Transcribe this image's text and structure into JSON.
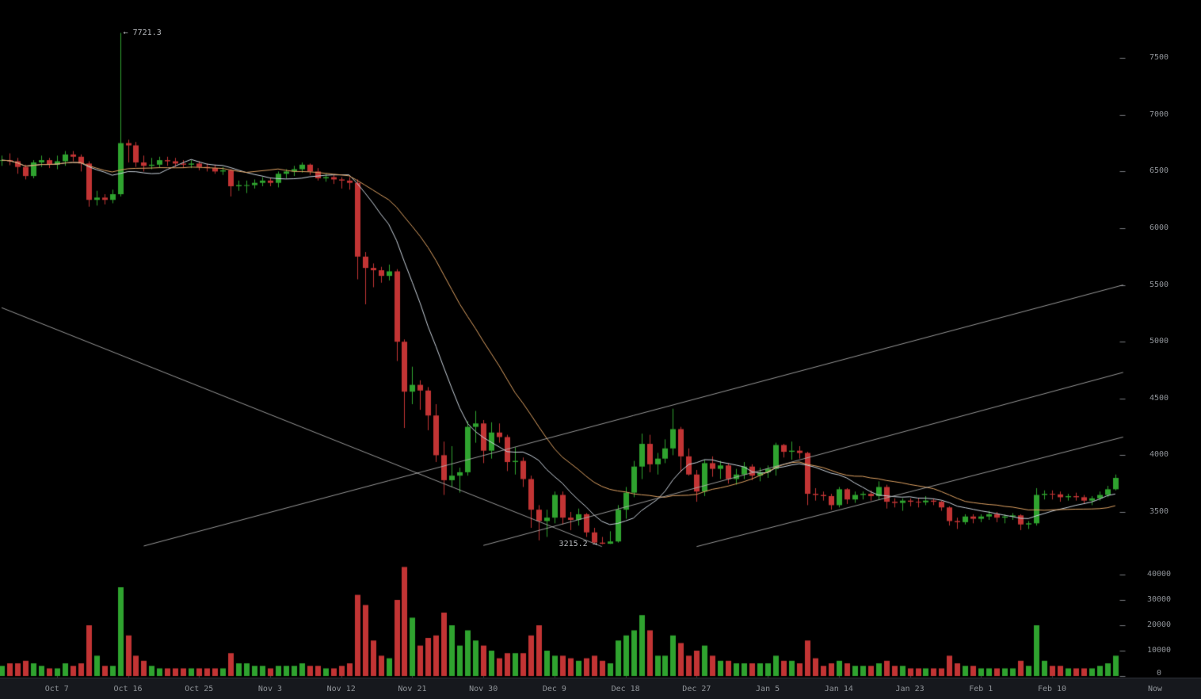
{
  "colors": {
    "background": "#000000",
    "candle_up": "#2fa32f",
    "candle_down": "#c23434",
    "ma_fast": "#c9d2dc",
    "ma_slow": "#dfa263",
    "trend_line": "#b3b3b3",
    "axis_text": "#8f9398",
    "axis_tick": "#7a7d82",
    "time_tick": "#3a3d42",
    "annotation": "#b6b9bd",
    "bottom_bar_bg": "#16181d",
    "bottom_bar_border": "#2f323a"
  },
  "chart_data": {
    "type": "candlestick",
    "has_volume_pane": true,
    "grid": false,
    "price_axis": {
      "side": "right",
      "ticks": [
        7500,
        7000,
        6500,
        6000,
        5500,
        5000,
        4500,
        4000,
        3500
      ],
      "visible_range": [
        3150,
        7800
      ]
    },
    "volume_axis": {
      "ticks": [
        40000,
        30000,
        20000,
        10000,
        0
      ],
      "visible_range": [
        0,
        43000
      ]
    },
    "time_axis": {
      "now_label": "Now",
      "ticks": [
        {
          "i": 7,
          "label": "Oct 7"
        },
        {
          "i": 16,
          "label": "Oct 16"
        },
        {
          "i": 25,
          "label": "Oct 25"
        },
        {
          "i": 34,
          "label": "Nov 3"
        },
        {
          "i": 43,
          "label": "Nov 12"
        },
        {
          "i": 52,
          "label": "Nov 21"
        },
        {
          "i": 61,
          "label": "Nov 30"
        },
        {
          "i": 70,
          "label": "Dec 9"
        },
        {
          "i": 79,
          "label": "Dec 18"
        },
        {
          "i": 88,
          "label": "Dec 27"
        },
        {
          "i": 97,
          "label": "Jan 5"
        },
        {
          "i": 106,
          "label": "Jan 14"
        },
        {
          "i": 115,
          "label": "Jan 23"
        },
        {
          "i": 124,
          "label": "Feb 1"
        },
        {
          "i": 133,
          "label": "Feb 10"
        }
      ]
    },
    "annotations": {
      "high": {
        "text": "← 7721.3",
        "value": 7721.3,
        "candle_index": 15
      },
      "low": {
        "text": "3215.2 →",
        "value": 3215.2,
        "candle_index": 76
      }
    },
    "moving_averages": [
      {
        "name": "ma-fast",
        "period": 10
      },
      {
        "name": "ma-slow",
        "period": 21
      }
    ],
    "trend_lines": [
      {
        "from": {
          "i": 0,
          "price": 5300
        },
        "to": {
          "i": 76,
          "price": 3195
        }
      },
      {
        "from": {
          "i": 18,
          "price": 3200
        },
        "to": {
          "i": 142,
          "price": 5500
        }
      },
      {
        "from": {
          "i": 61,
          "price": 3205
        },
        "to": {
          "i": 142,
          "price": 4730
        }
      },
      {
        "from": {
          "i": 88,
          "price": 3195
        },
        "to": {
          "i": 142,
          "price": 4160
        }
      }
    ],
    "candles_format": [
      "date",
      "open",
      "high",
      "low",
      "close",
      "volume"
    ],
    "candles": [
      [
        "Sep 30",
        6595,
        6640,
        6550,
        6600,
        4000
      ],
      [
        "Oct 1",
        6600,
        6660,
        6555,
        6590,
        5000
      ],
      [
        "Oct 2",
        6590,
        6620,
        6480,
        6540,
        5000
      ],
      [
        "Oct 3",
        6540,
        6560,
        6430,
        6460,
        6000
      ],
      [
        "Oct 4",
        6460,
        6600,
        6440,
        6580,
        5000
      ],
      [
        "Oct 5",
        6580,
        6640,
        6540,
        6600,
        4000
      ],
      [
        "Oct 6",
        6600,
        6620,
        6530,
        6560,
        3000
      ],
      [
        "Oct 7",
        6560,
        6640,
        6520,
        6590,
        3000
      ],
      [
        "Oct 8",
        6590,
        6680,
        6550,
        6650,
        5000
      ],
      [
        "Oct 9",
        6650,
        6680,
        6590,
        6630,
        4000
      ],
      [
        "Oct 10",
        6630,
        6650,
        6500,
        6570,
        5000
      ],
      [
        "Oct 11",
        6570,
        6590,
        6190,
        6250,
        20000
      ],
      [
        "Oct 12",
        6250,
        6330,
        6200,
        6270,
        8000
      ],
      [
        "Oct 13",
        6270,
        6300,
        6210,
        6250,
        4000
      ],
      [
        "Oct 14",
        6250,
        6340,
        6220,
        6300,
        4000
      ],
      [
        "Oct 15",
        6300,
        7721.3,
        6280,
        6750,
        35000
      ],
      [
        "Oct 16",
        6750,
        6780,
        6580,
        6730,
        16000
      ],
      [
        "Oct 17",
        6730,
        6760,
        6540,
        6580,
        8000
      ],
      [
        "Oct 18",
        6580,
        6640,
        6500,
        6550,
        6000
      ],
      [
        "Oct 19",
        6550,
        6620,
        6520,
        6560,
        4000
      ],
      [
        "Oct 20",
        6560,
        6630,
        6530,
        6600,
        3000
      ],
      [
        "Oct 21",
        6600,
        6630,
        6550,
        6590,
        3000
      ],
      [
        "Oct 22",
        6590,
        6620,
        6540,
        6570,
        3000
      ],
      [
        "Oct 23",
        6570,
        6600,
        6530,
        6560,
        3000
      ],
      [
        "Oct 24",
        6560,
        6600,
        6530,
        6570,
        3000
      ],
      [
        "Oct 25",
        6570,
        6590,
        6510,
        6540,
        3000
      ],
      [
        "Oct 26",
        6540,
        6570,
        6500,
        6530,
        3000
      ],
      [
        "Oct 27",
        6530,
        6560,
        6480,
        6500,
        3000
      ],
      [
        "Oct 28",
        6500,
        6540,
        6470,
        6510,
        3000
      ],
      [
        "Oct 29",
        6510,
        6520,
        6280,
        6370,
        9000
      ],
      [
        "Oct 30",
        6370,
        6420,
        6330,
        6380,
        5000
      ],
      [
        "Oct 31",
        6380,
        6420,
        6310,
        6380,
        5000
      ],
      [
        "Nov 1",
        6380,
        6430,
        6350,
        6400,
        4000
      ],
      [
        "Nov 2",
        6400,
        6450,
        6370,
        6420,
        4000
      ],
      [
        "Nov 3",
        6420,
        6440,
        6370,
        6400,
        3000
      ],
      [
        "Nov 4",
        6400,
        6500,
        6360,
        6480,
        4000
      ],
      [
        "Nov 5",
        6480,
        6520,
        6440,
        6500,
        4000
      ],
      [
        "Nov 6",
        6500,
        6550,
        6460,
        6520,
        4000
      ],
      [
        "Nov 7",
        6520,
        6580,
        6490,
        6560,
        5000
      ],
      [
        "Nov 8",
        6560,
        6570,
        6470,
        6500,
        4000
      ],
      [
        "Nov 9",
        6500,
        6530,
        6420,
        6440,
        4000
      ],
      [
        "Nov 10",
        6440,
        6480,
        6410,
        6450,
        3000
      ],
      [
        "Nov 11",
        6450,
        6470,
        6390,
        6430,
        3000
      ],
      [
        "Nov 12",
        6430,
        6450,
        6350,
        6420,
        4000
      ],
      [
        "Nov 13",
        6420,
        6450,
        6340,
        6400,
        5000
      ],
      [
        "Nov 14",
        6400,
        6430,
        5550,
        5750,
        32000
      ],
      [
        "Nov 15",
        5750,
        5790,
        5330,
        5650,
        28000
      ],
      [
        "Nov 16",
        5650,
        5690,
        5480,
        5630,
        14000
      ],
      [
        "Nov 17",
        5630,
        5660,
        5520,
        5580,
        8000
      ],
      [
        "Nov 18",
        5580,
        5680,
        5540,
        5620,
        7000
      ],
      [
        "Nov 19",
        5620,
        5640,
        4830,
        5000,
        30000
      ],
      [
        "Nov 20",
        5000,
        5020,
        4240,
        4560,
        43000
      ],
      [
        "Nov 21",
        4560,
        4780,
        4450,
        4620,
        23000
      ],
      [
        "Nov 22",
        4620,
        4660,
        4400,
        4570,
        12000
      ],
      [
        "Nov 23",
        4570,
        4600,
        4220,
        4350,
        15000
      ],
      [
        "Nov 24",
        4350,
        4450,
        3940,
        4000,
        16000
      ],
      [
        "Nov 25",
        4000,
        4120,
        3650,
        3780,
        25000
      ],
      [
        "Nov 26",
        3780,
        4080,
        3720,
        3820,
        20000
      ],
      [
        "Nov 27",
        3820,
        3890,
        3670,
        3850,
        12000
      ],
      [
        "Nov 28",
        3850,
        4300,
        3820,
        4250,
        18000
      ],
      [
        "Nov 29",
        4250,
        4390,
        4110,
        4280,
        14000
      ],
      [
        "Nov 30",
        4280,
        4310,
        3930,
        4040,
        12000
      ],
      [
        "Dec 1",
        4040,
        4290,
        3970,
        4200,
        10000
      ],
      [
        "Dec 2",
        4200,
        4280,
        4110,
        4160,
        7000
      ],
      [
        "Dec 3",
        4160,
        4180,
        3860,
        3940,
        9000
      ],
      [
        "Dec 4",
        3940,
        4070,
        3830,
        3950,
        9000
      ],
      [
        "Dec 5",
        3950,
        3980,
        3720,
        3790,
        9000
      ],
      [
        "Dec 6",
        3790,
        3820,
        3360,
        3520,
        16000
      ],
      [
        "Dec 7",
        3520,
        3560,
        3250,
        3420,
        20000
      ],
      [
        "Dec 8",
        3420,
        3520,
        3280,
        3450,
        10000
      ],
      [
        "Dec 9",
        3450,
        3680,
        3400,
        3650,
        8000
      ],
      [
        "Dec 10",
        3650,
        3680,
        3390,
        3450,
        8000
      ],
      [
        "Dec 11",
        3450,
        3500,
        3340,
        3430,
        7000
      ],
      [
        "Dec 12",
        3430,
        3530,
        3380,
        3480,
        6000
      ],
      [
        "Dec 13",
        3480,
        3490,
        3280,
        3320,
        7000
      ],
      [
        "Dec 14",
        3320,
        3360,
        3220,
        3230,
        8000
      ],
      [
        "Dec 15",
        3230,
        3280,
        3215.2,
        3220,
        6000
      ],
      [
        "Dec 16",
        3220,
        3330,
        3218,
        3240,
        5000
      ],
      [
        "Dec 17",
        3240,
        3560,
        3230,
        3520,
        14000
      ],
      [
        "Dec 18",
        3520,
        3720,
        3440,
        3670,
        16000
      ],
      [
        "Dec 19",
        3670,
        3950,
        3630,
        3900,
        18000
      ],
      [
        "Dec 20",
        3900,
        4190,
        3790,
        4100,
        24000
      ],
      [
        "Dec 21",
        4100,
        4180,
        3850,
        3920,
        18000
      ],
      [
        "Dec 22",
        3920,
        4020,
        3830,
        3970,
        8000
      ],
      [
        "Dec 23",
        3970,
        4140,
        3930,
        4060,
        8000
      ],
      [
        "Dec 24",
        4060,
        4410,
        4000,
        4230,
        16000
      ],
      [
        "Dec 25",
        4230,
        4250,
        3850,
        3990,
        13000
      ],
      [
        "Dec 26",
        3990,
        4060,
        3820,
        3830,
        8000
      ],
      [
        "Dec 27",
        3830,
        3870,
        3590,
        3680,
        10000
      ],
      [
        "Dec 28",
        3680,
        3960,
        3640,
        3930,
        12000
      ],
      [
        "Dec 29",
        3930,
        3990,
        3810,
        3880,
        8000
      ],
      [
        "Dec 30",
        3880,
        3950,
        3790,
        3910,
        6000
      ],
      [
        "Dec 31",
        3910,
        3930,
        3750,
        3790,
        6000
      ],
      [
        "Jan 1",
        3790,
        3880,
        3740,
        3830,
        5000
      ],
      [
        "Jan 2",
        3830,
        3940,
        3790,
        3900,
        5000
      ],
      [
        "Jan 3",
        3900,
        3920,
        3780,
        3820,
        5000
      ],
      [
        "Jan 4",
        3820,
        3890,
        3770,
        3850,
        5000
      ],
      [
        "Jan 5",
        3850,
        3910,
        3800,
        3880,
        5000
      ],
      [
        "Jan 6",
        3880,
        4110,
        3820,
        4090,
        8000
      ],
      [
        "Jan 7",
        4090,
        4100,
        3980,
        4030,
        6000
      ],
      [
        "Jan 8",
        4030,
        4120,
        3960,
        4040,
        6000
      ],
      [
        "Jan 9",
        4040,
        4080,
        3970,
        4020,
        5000
      ],
      [
        "Jan 10",
        4020,
        4030,
        3560,
        3660,
        14000
      ],
      [
        "Jan 11",
        3660,
        3710,
        3600,
        3650,
        7000
      ],
      [
        "Jan 12",
        3650,
        3680,
        3600,
        3640,
        4000
      ],
      [
        "Jan 13",
        3640,
        3660,
        3520,
        3560,
        5000
      ],
      [
        "Jan 14",
        3560,
        3720,
        3540,
        3700,
        6000
      ],
      [
        "Jan 15",
        3700,
        3710,
        3570,
        3610,
        5000
      ],
      [
        "Jan 16",
        3610,
        3680,
        3580,
        3650,
        4000
      ],
      [
        "Jan 17",
        3650,
        3680,
        3610,
        3660,
        4000
      ],
      [
        "Jan 18",
        3660,
        3690,
        3600,
        3640,
        4000
      ],
      [
        "Jan 19",
        3640,
        3770,
        3610,
        3720,
        5000
      ],
      [
        "Jan 20",
        3720,
        3740,
        3530,
        3590,
        6000
      ],
      [
        "Jan 21",
        3590,
        3620,
        3540,
        3580,
        4000
      ],
      [
        "Jan 22",
        3580,
        3620,
        3510,
        3600,
        4000
      ],
      [
        "Jan 23",
        3600,
        3620,
        3550,
        3590,
        3000
      ],
      [
        "Jan 24",
        3590,
        3620,
        3540,
        3585,
        3000
      ],
      [
        "Jan 25",
        3585,
        3640,
        3560,
        3600,
        3000
      ],
      [
        "Jan 26",
        3600,
        3620,
        3560,
        3590,
        3000
      ],
      [
        "Jan 27",
        3590,
        3600,
        3510,
        3540,
        3000
      ],
      [
        "Jan 28",
        3540,
        3550,
        3380,
        3420,
        8000
      ],
      [
        "Jan 29",
        3420,
        3450,
        3350,
        3410,
        5000
      ],
      [
        "Jan 30",
        3410,
        3480,
        3390,
        3460,
        4000
      ],
      [
        "Jan 31",
        3460,
        3480,
        3400,
        3440,
        4000
      ],
      [
        "Feb 1",
        3440,
        3480,
        3410,
        3460,
        3000
      ],
      [
        "Feb 2",
        3460,
        3510,
        3430,
        3480,
        3000
      ],
      [
        "Feb 3",
        3480,
        3500,
        3410,
        3450,
        3000
      ],
      [
        "Feb 4",
        3450,
        3480,
        3400,
        3460,
        3000
      ],
      [
        "Feb 5",
        3460,
        3490,
        3430,
        3470,
        3000
      ],
      [
        "Feb 6",
        3470,
        3480,
        3340,
        3390,
        6000
      ],
      [
        "Feb 7",
        3390,
        3420,
        3350,
        3400,
        4000
      ],
      [
        "Feb 8",
        3400,
        3710,
        3380,
        3650,
        20000
      ],
      [
        "Feb 9",
        3650,
        3690,
        3610,
        3660,
        6000
      ],
      [
        "Feb 10",
        3660,
        3690,
        3610,
        3655,
        4000
      ],
      [
        "Feb 11",
        3655,
        3680,
        3590,
        3630,
        4000
      ],
      [
        "Feb 12",
        3630,
        3660,
        3600,
        3640,
        3000
      ],
      [
        "Feb 13",
        3640,
        3670,
        3600,
        3630,
        3000
      ],
      [
        "Feb 14",
        3630,
        3650,
        3570,
        3600,
        3000
      ],
      [
        "Feb 15",
        3600,
        3640,
        3560,
        3620,
        3000
      ],
      [
        "Feb 16",
        3620,
        3680,
        3600,
        3650,
        4000
      ],
      [
        "Feb 17",
        3650,
        3730,
        3630,
        3700,
        5000
      ],
      [
        "Feb 18",
        3700,
        3830,
        3690,
        3800,
        8000
      ]
    ]
  }
}
